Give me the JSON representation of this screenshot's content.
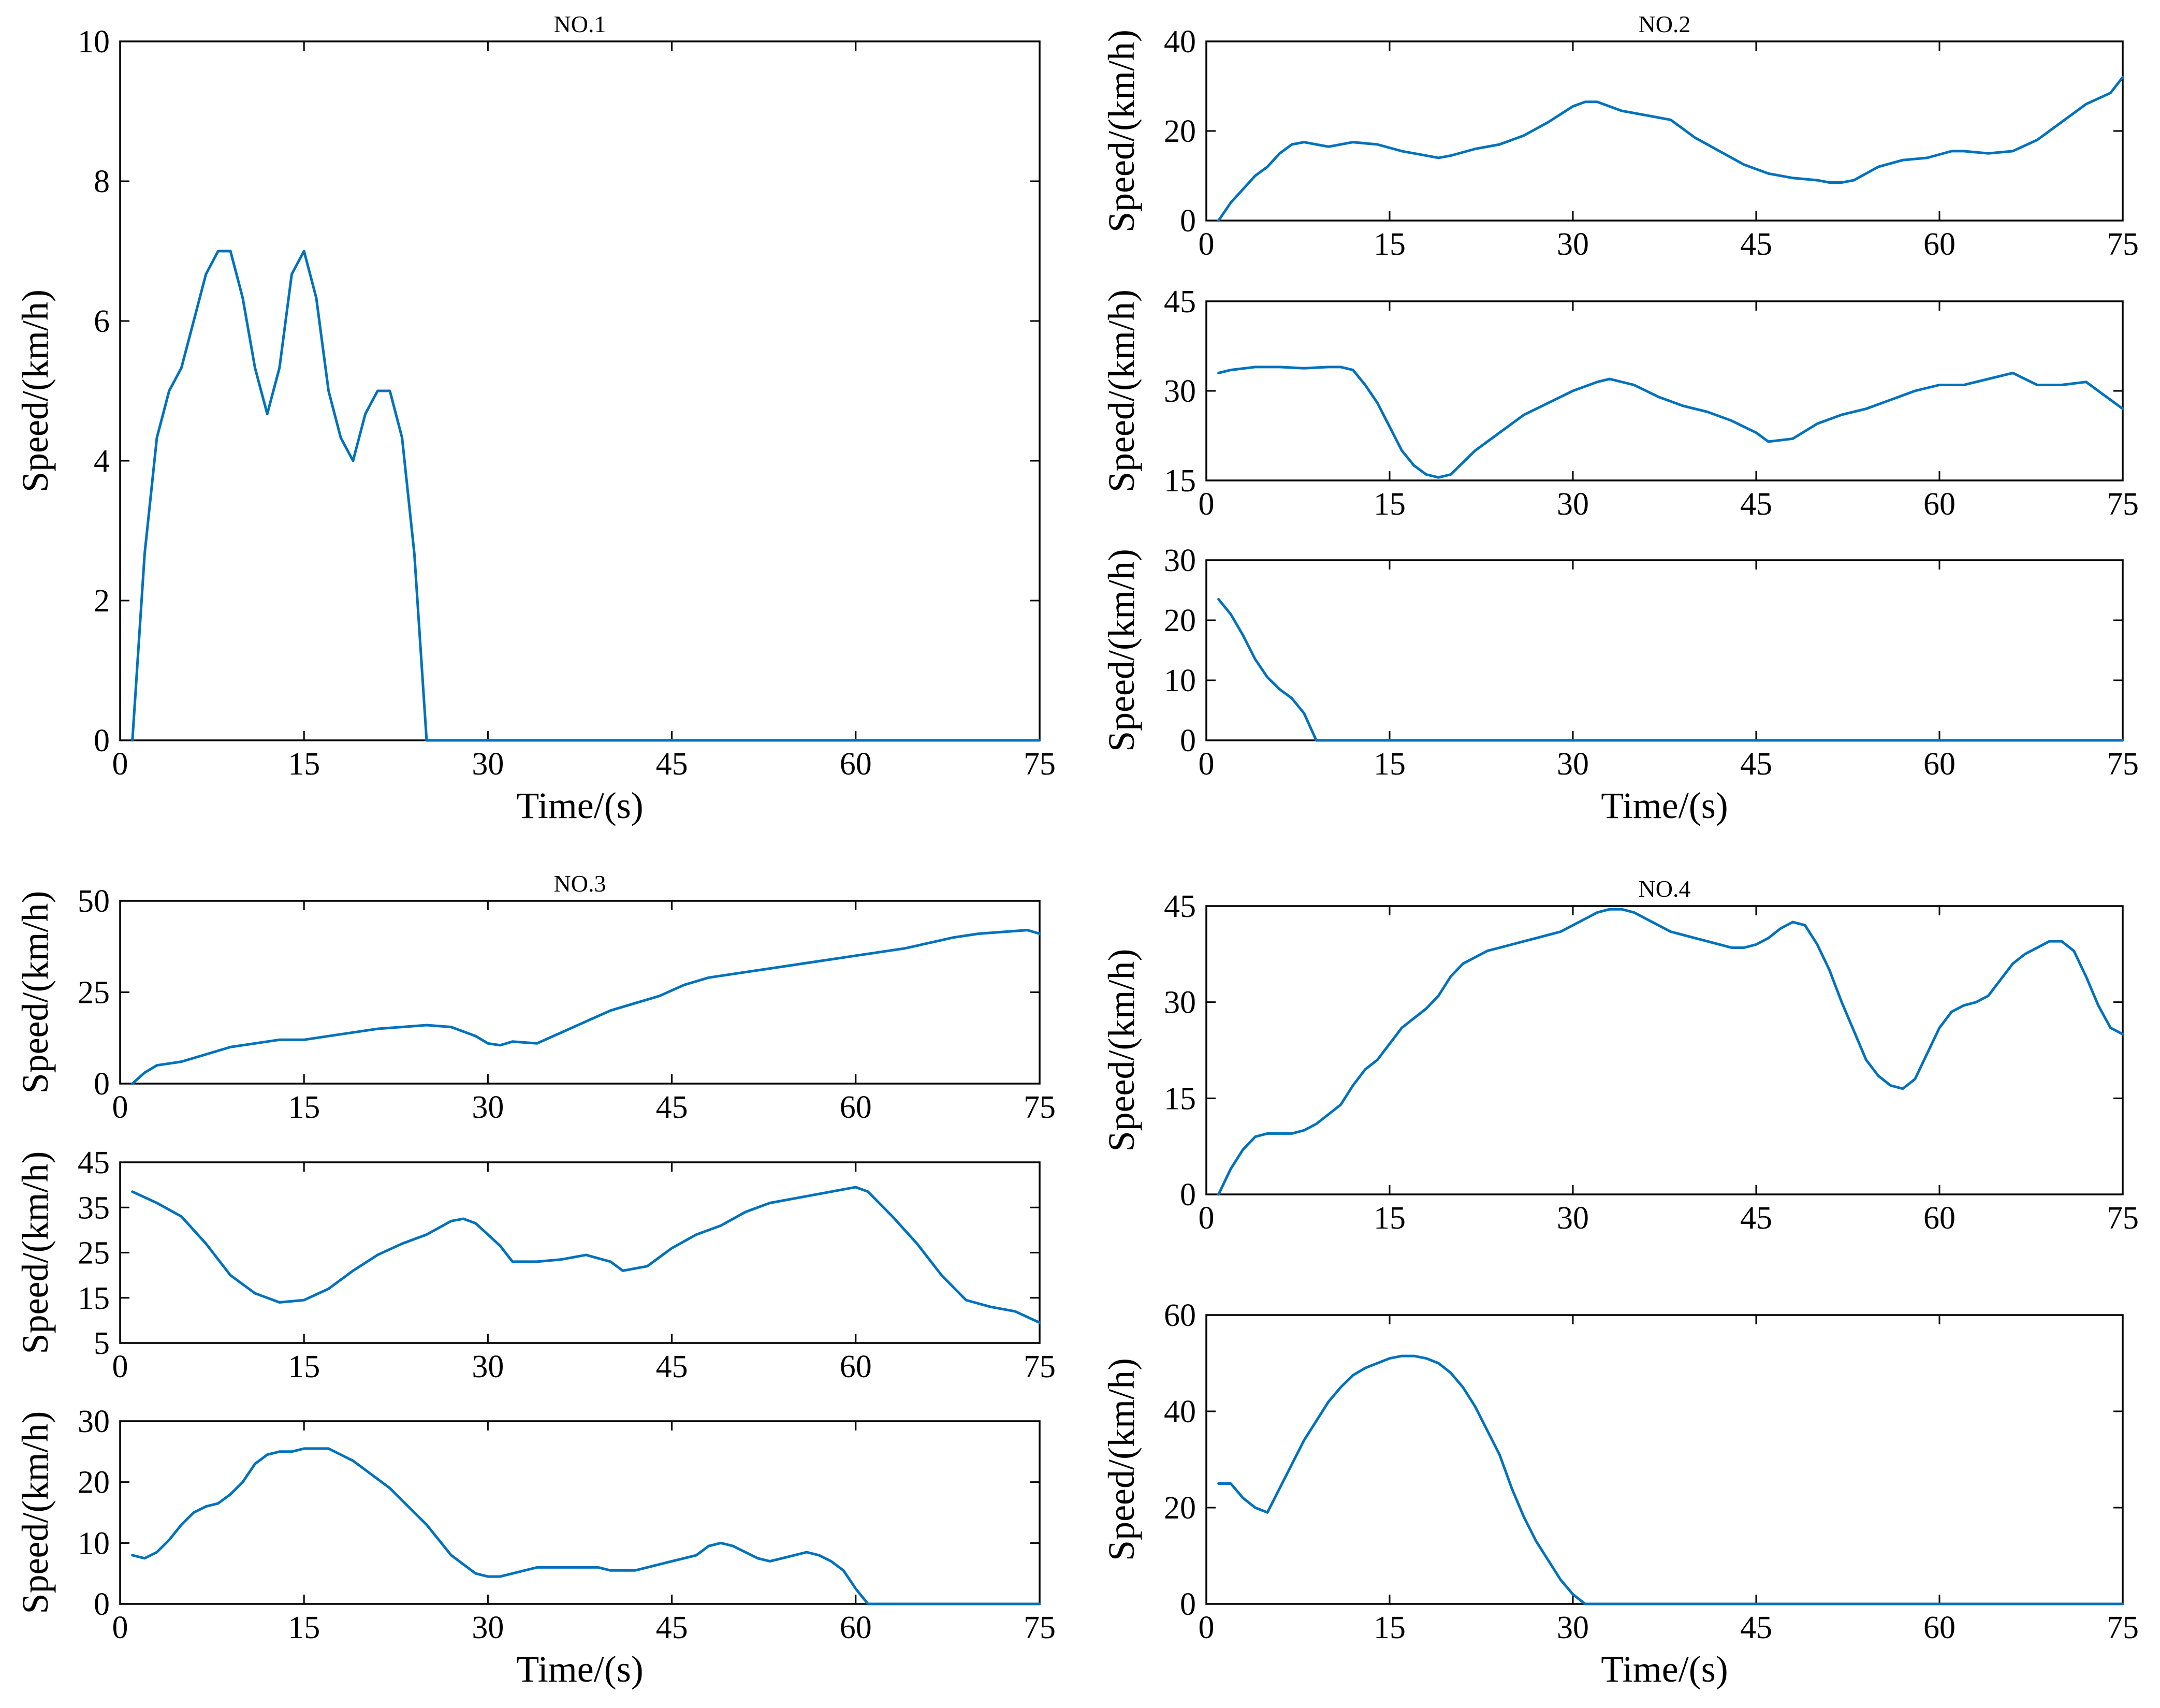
{
  "chart_data": [
    {
      "id": "p1",
      "type": "line",
      "title": "NO.1",
      "xlabel": "Time/(s)",
      "ylabel": "Speed/(km/h)",
      "xlim": [
        0,
        75
      ],
      "ylim": [
        0,
        10
      ],
      "xticks": [
        0,
        15,
        30,
        45,
        60,
        75
      ],
      "yticks": [
        0,
        2,
        4,
        6,
        8,
        10
      ],
      "series": [
        {
          "name": "speed",
          "color": "#0072BD",
          "x": [
            1,
            2,
            3,
            4,
            5,
            6,
            7,
            8,
            9,
            10,
            11,
            12,
            13,
            14,
            15,
            16,
            17,
            18,
            19,
            20,
            21,
            22,
            23,
            24,
            25,
            75
          ],
          "y": [
            0,
            2.67,
            4.33,
            5.0,
            5.33,
            6.0,
            6.67,
            7.0,
            7.0,
            6.33,
            5.33,
            4.67,
            5.33,
            6.67,
            7.0,
            6.33,
            5.0,
            4.33,
            4.0,
            4.67,
            5.0,
            5.0,
            4.33,
            2.67,
            0,
            0
          ]
        }
      ]
    },
    {
      "id": "p2a",
      "type": "line",
      "title": "NO.2",
      "xlabel": "",
      "ylabel": "Speed/(km/h)",
      "xlim": [
        0,
        75
      ],
      "ylim": [
        0,
        40
      ],
      "xticks": [
        0,
        15,
        30,
        45,
        60,
        75
      ],
      "yticks": [
        0,
        20,
        40
      ],
      "series": [
        {
          "name": "speed",
          "color": "#0072BD",
          "x": [
            1,
            2,
            3,
            4,
            5,
            6,
            7,
            8,
            9,
            10,
            12,
            14,
            16,
            18,
            19,
            20,
            22,
            24,
            26,
            28,
            30,
            31,
            32,
            34,
            36,
            38,
            40,
            42,
            44,
            46,
            48,
            50,
            51,
            52,
            53,
            55,
            57,
            59,
            61,
            62,
            64,
            66,
            68,
            70,
            72,
            74,
            75
          ],
          "y": [
            0,
            4,
            7,
            10,
            12,
            15,
            17,
            17.5,
            17,
            16.5,
            17.5,
            17,
            15.5,
            14.5,
            14,
            14.5,
            16,
            17,
            19,
            22,
            25.5,
            26.5,
            26.5,
            24.5,
            23.5,
            22.5,
            18.5,
            15.5,
            12.5,
            10.5,
            9.5,
            9,
            8.5,
            8.5,
            9,
            12,
            13.5,
            14,
            15.5,
            15.5,
            15,
            15.5,
            18,
            22,
            26,
            28.5,
            32
          ]
        }
      ]
    },
    {
      "id": "p2b",
      "type": "line",
      "title": "",
      "xlabel": "",
      "ylabel": "Speed/(km/h)",
      "xlim": [
        0,
        75
      ],
      "ylim": [
        15,
        45
      ],
      "xticks": [
        0,
        15,
        30,
        45,
        60,
        75
      ],
      "yticks": [
        15,
        30,
        45
      ],
      "series": [
        {
          "name": "speed",
          "color": "#0072BD",
          "x": [
            1,
            2,
            4,
            6,
            8,
            10,
            11,
            12,
            13,
            14,
            15,
            16,
            17,
            18,
            19,
            20,
            22,
            24,
            26,
            28,
            30,
            32,
            33,
            35,
            37,
            39,
            41,
            43,
            45,
            46,
            48,
            50,
            52,
            54,
            56,
            58,
            60,
            62,
            64,
            66,
            68,
            70,
            72,
            74,
            75
          ],
          "y": [
            33,
            33.5,
            34,
            34,
            33.8,
            34,
            34,
            33.5,
            31,
            28,
            24,
            20,
            17.5,
            16,
            15.5,
            16,
            20,
            23,
            26,
            28,
            30,
            31.5,
            32,
            31,
            29,
            27.5,
            26.5,
            25,
            23,
            21.5,
            22,
            24.5,
            26,
            27,
            28.5,
            30,
            31,
            31,
            32,
            33,
            31,
            31,
            31.5,
            28.5,
            27
          ]
        }
      ]
    },
    {
      "id": "p2c",
      "type": "line",
      "title": "",
      "xlabel": "Time/(s)",
      "ylabel": "Speed/(km/h)",
      "xlim": [
        0,
        75
      ],
      "ylim": [
        0,
        30
      ],
      "xticks": [
        0,
        15,
        30,
        45,
        60,
        75
      ],
      "yticks": [
        0,
        10,
        20,
        30
      ],
      "series": [
        {
          "name": "speed",
          "color": "#0072BD",
          "x": [
            1,
            2,
            3,
            4,
            5,
            6,
            7,
            8,
            9,
            75
          ],
          "y": [
            23.5,
            21,
            17.5,
            13.5,
            10.5,
            8.5,
            7,
            4.5,
            0,
            0
          ]
        }
      ]
    },
    {
      "id": "p3a",
      "type": "line",
      "title": "NO.3",
      "xlabel": "",
      "ylabel": "Speed/(km/h)",
      "xlim": [
        0,
        75
      ],
      "ylim": [
        0,
        50
      ],
      "xticks": [
        0,
        15,
        30,
        45,
        60,
        75
      ],
      "yticks": [
        0,
        25,
        50
      ],
      "series": [
        {
          "name": "speed",
          "color": "#0072BD",
          "x": [
            1,
            2,
            3,
            5,
            7,
            9,
            11,
            13,
            15,
            17,
            19,
            21,
            23,
            25,
            27,
            29,
            30,
            31,
            32,
            34,
            36,
            38,
            40,
            42,
            44,
            46,
            48,
            50,
            52,
            54,
            56,
            58,
            60,
            62,
            64,
            66,
            68,
            70,
            72,
            74,
            75
          ],
          "y": [
            0,
            3,
            5,
            6,
            8,
            10,
            11,
            12,
            12,
            13,
            14,
            15,
            15.5,
            16,
            15.5,
            13,
            11,
            10.5,
            11.5,
            11,
            14,
            17,
            20,
            22,
            24,
            27,
            29,
            30,
            31,
            32,
            33,
            34,
            35,
            36,
            37,
            38.5,
            40,
            41,
            41.5,
            42,
            41
          ]
        }
      ]
    },
    {
      "id": "p3b",
      "type": "line",
      "title": "",
      "xlabel": "",
      "ylabel": "Speed/(km/h)",
      "xlim": [
        0,
        75
      ],
      "ylim": [
        5,
        45
      ],
      "xticks": [
        0,
        15,
        30,
        45,
        60,
        75
      ],
      "yticks": [
        5,
        15,
        25,
        35,
        45
      ],
      "series": [
        {
          "name": "speed",
          "color": "#0072BD",
          "x": [
            1,
            3,
            5,
            7,
            9,
            11,
            13,
            15,
            17,
            19,
            21,
            23,
            25,
            27,
            28,
            29,
            31,
            32,
            34,
            36,
            38,
            40,
            41,
            43,
            45,
            47,
            49,
            51,
            53,
            55,
            57,
            59,
            60,
            61,
            63,
            65,
            67,
            69,
            71,
            73,
            75
          ],
          "y": [
            38.5,
            36,
            33,
            27,
            20,
            16,
            14,
            14.5,
            17,
            21,
            24.5,
            27,
            29,
            32,
            32.5,
            31.5,
            26.5,
            23,
            23,
            23.5,
            24.5,
            23,
            21,
            22,
            26,
            29,
            31,
            34,
            36,
            37,
            38,
            39,
            39.5,
            38.5,
            33,
            27,
            20,
            14.5,
            13,
            12,
            9.5
          ]
        }
      ]
    },
    {
      "id": "p3c",
      "type": "line",
      "title": "",
      "xlabel": "Time/(s)",
      "ylabel": "Speed/(km/h)",
      "xlim": [
        0,
        75
      ],
      "ylim": [
        0,
        30
      ],
      "xticks": [
        0,
        15,
        30,
        45,
        60,
        75
      ],
      "yticks": [
        0,
        10,
        20,
        30
      ],
      "series": [
        {
          "name": "speed",
          "color": "#0072BD",
          "x": [
            1,
            2,
            3,
            4,
            5,
            6,
            7,
            8,
            9,
            10,
            11,
            12,
            13,
            14,
            15,
            16,
            17,
            18,
            19,
            20,
            21,
            22,
            23,
            24,
            25,
            26,
            27,
            28,
            29,
            30,
            31,
            32,
            33,
            34,
            35,
            36,
            37,
            38,
            39,
            40,
            41,
            42,
            43,
            44,
            45,
            46,
            47,
            48,
            49,
            50,
            51,
            52,
            53,
            54,
            55,
            56,
            57,
            58,
            59,
            60,
            61,
            62,
            75
          ],
          "y": [
            8,
            7.5,
            8.5,
            10.5,
            13,
            15,
            16,
            16.5,
            18,
            20,
            23,
            24.5,
            25,
            25,
            25.5,
            25.5,
            25.5,
            24.5,
            23.5,
            22,
            20.5,
            19,
            17,
            15,
            13,
            10.5,
            8,
            6.5,
            5,
            4.5,
            4.5,
            5,
            5.5,
            6,
            6,
            6,
            6,
            6,
            6,
            5.5,
            5.5,
            5.5,
            6,
            6.5,
            7,
            7.5,
            8,
            9.5,
            10,
            9.5,
            8.5,
            7.5,
            7,
            7.5,
            8,
            8.5,
            8,
            7,
            5.5,
            2.5,
            0,
            0,
            0
          ]
        }
      ]
    },
    {
      "id": "p4a",
      "type": "line",
      "title": "NO.4",
      "xlabel": "",
      "ylabel": "Speed/(km/h)",
      "xlim": [
        0,
        75
      ],
      "ylim": [
        0,
        45
      ],
      "xticks": [
        0,
        15,
        30,
        45,
        60,
        75
      ],
      "yticks": [
        0,
        15,
        30,
        45
      ],
      "series": [
        {
          "name": "speed",
          "color": "#0072BD",
          "x": [
            1,
            2,
            3,
            4,
            5,
            6,
            7,
            8,
            9,
            10,
            11,
            12,
            13,
            14,
            15,
            16,
            17,
            18,
            19,
            20,
            21,
            22,
            23,
            24,
            25,
            26,
            27,
            28,
            29,
            30,
            31,
            32,
            33,
            34,
            35,
            36,
            37,
            38,
            39,
            40,
            41,
            42,
            43,
            44,
            45,
            46,
            47,
            48,
            49,
            50,
            51,
            52,
            53,
            54,
            55,
            56,
            57,
            58,
            59,
            60,
            61,
            62,
            63,
            64,
            65,
            66,
            67,
            68,
            69,
            70,
            71,
            72,
            73,
            74,
            75
          ],
          "y": [
            0,
            4,
            7,
            9,
            9.5,
            9.5,
            9.5,
            10,
            11,
            12.5,
            14,
            17,
            19.5,
            21,
            23.5,
            26,
            27.5,
            29,
            31,
            34,
            36,
            37,
            38,
            38.5,
            39,
            39.5,
            40,
            40.5,
            41,
            42,
            43,
            44,
            44.5,
            44.5,
            44,
            43,
            42,
            41,
            40.5,
            40,
            39.5,
            39,
            38.5,
            38.5,
            39,
            40,
            41.5,
            42.5,
            42,
            39,
            35,
            30,
            25.5,
            21,
            18.5,
            17,
            16.5,
            18,
            22,
            26,
            28.5,
            29.5,
            30,
            31,
            33.5,
            36,
            37.5,
            38.5,
            39.5,
            39.5,
            38,
            34,
            29.5,
            26,
            25
          ]
        }
      ]
    },
    {
      "id": "p4b",
      "type": "line",
      "title": "",
      "xlabel": "Time/(s)",
      "ylabel": "Speed/(km/h)",
      "xlim": [
        0,
        75
      ],
      "ylim": [
        0,
        60
      ],
      "xticks": [
        0,
        15,
        30,
        45,
        60,
        75
      ],
      "yticks": [
        0,
        20,
        40,
        60
      ],
      "series": [
        {
          "name": "speed",
          "color": "#0072BD",
          "x": [
            1,
            2,
            3,
            4,
            5,
            6,
            7,
            8,
            9,
            10,
            11,
            12,
            13,
            14,
            15,
            16,
            17,
            18,
            19,
            20,
            21,
            22,
            23,
            24,
            25,
            26,
            27,
            28,
            29,
            30,
            31,
            75
          ],
          "y": [
            25,
            25,
            22,
            20,
            19,
            24,
            29,
            34,
            38,
            42,
            45,
            47.5,
            49,
            50,
            51,
            51.5,
            51.5,
            51,
            50,
            48,
            45,
            41,
            36,
            31,
            24,
            18,
            13,
            9,
            5,
            2,
            0,
            0
          ]
        }
      ]
    }
  ]
}
